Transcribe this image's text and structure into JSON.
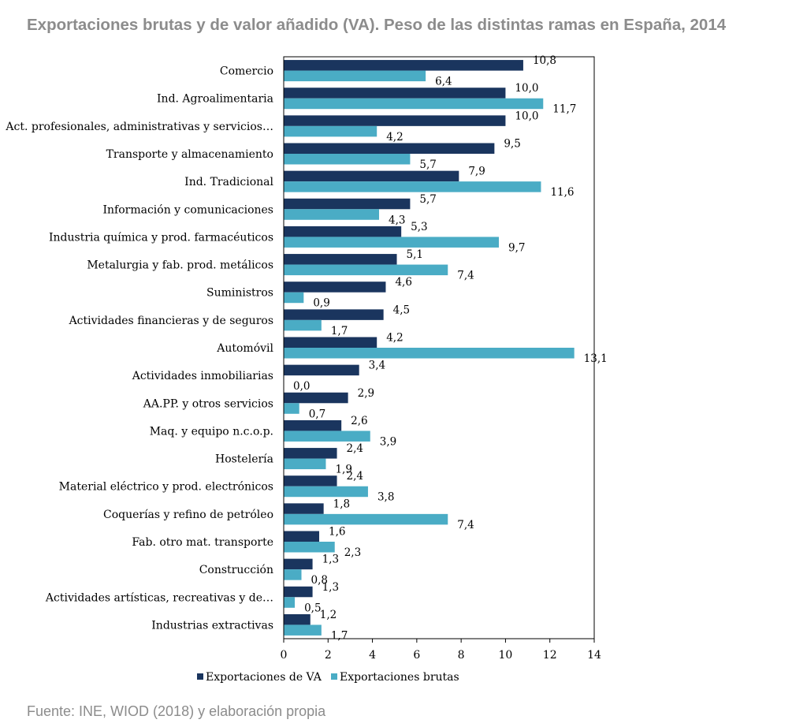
{
  "title": "Exportaciones brutas y de valor añadido (VA). Peso de las distintas ramas en España, 2014",
  "source": "Fuente: INE, WIOD (2018) y elaboración propia",
  "colors": {
    "va": "#1a355e",
    "brutas": "#4aacc5",
    "axis": "#000000"
  },
  "chart_data": {
    "type": "bar",
    "orientation": "horizontal",
    "title": "Exportaciones brutas y de valor añadido (VA). Peso de las distintas ramas en España, 2014",
    "xlim": [
      0,
      14
    ],
    "xticks": [
      "0",
      "2",
      "4",
      "6",
      "8",
      "10",
      "12",
      "14"
    ],
    "categories": [
      "Comercio",
      "Ind. Agroalimentaria",
      "Act. profesionales, administrativas y servicios…",
      "Transporte y almacenamiento",
      "Ind. Tradicional",
      "Información y comunicaciones",
      "Industria química y prod. farmacéuticos",
      "Metalurgia y fab. prod. metálicos",
      "Suministros",
      "Actividades financieras y de seguros",
      "Automóvil",
      "Actividades inmobiliarias",
      "AA.PP. y otros servicios",
      "Maq. y equipo n.c.o.p.",
      "Hostelería",
      "Material eléctrico y prod. electrónicos",
      "Coquerías y refino de petróleo",
      "Fab. otro mat. transporte",
      "Construcción",
      "Actividades artísticas, recreativas y de…",
      "Industrias extractivas"
    ],
    "series": [
      {
        "name": "Exportaciones de VA",
        "values": [
          10.8,
          10.0,
          10.0,
          9.5,
          7.9,
          5.7,
          5.3,
          5.1,
          4.6,
          4.5,
          4.2,
          3.4,
          2.9,
          2.6,
          2.4,
          2.4,
          1.8,
          1.6,
          1.3,
          1.3,
          1.2
        ],
        "labels": [
          "10,8",
          "10,0",
          "10,0",
          "9,5",
          "7,9",
          "5,7",
          "5,3",
          "5,1",
          "4,6",
          "4,5",
          "4,2",
          "3,4",
          "2,9",
          "2,6",
          "2,4",
          "2,4",
          "1,8",
          "1,6",
          "1,3",
          "1,3",
          "1,2"
        ]
      },
      {
        "name": "Exportaciones brutas",
        "values": [
          6.4,
          11.7,
          4.2,
          5.7,
          11.6,
          4.3,
          9.7,
          7.4,
          0.9,
          1.7,
          13.1,
          0.0,
          0.7,
          3.9,
          1.9,
          3.8,
          7.4,
          2.3,
          0.8,
          0.5,
          1.7
        ],
        "labels": [
          "6,4",
          "11,7",
          "4,2",
          "5,7",
          "11,6",
          "4,3",
          "9,7",
          "7,4",
          "0,9",
          "1,7",
          "13,1",
          "0,0",
          "0,7",
          "3,9",
          "1,9",
          "3,8",
          "7,4",
          "2,3",
          "0,8",
          "0,5",
          "1,7"
        ]
      }
    ],
    "legend": {
      "position": "bottom"
    },
    "grid": false
  }
}
